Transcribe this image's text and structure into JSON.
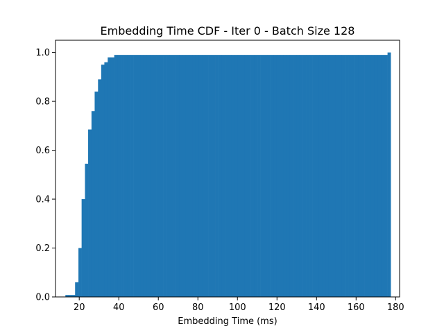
{
  "chart_data": {
    "type": "bar",
    "title": "Embedding Time CDF - Iter 0 - Batch Size 128",
    "xlabel": "Embedding Time (ms)",
    "ylabel": "",
    "xlim": [
      8,
      182
    ],
    "ylim": [
      0,
      1.05
    ],
    "xticks": [
      20,
      40,
      60,
      80,
      100,
      120,
      140,
      160,
      180
    ],
    "yticks": [
      0.0,
      0.2,
      0.4,
      0.6,
      0.8,
      1.0
    ],
    "ytick_labels": [
      "0.0",
      "0.2",
      "0.4",
      "0.6",
      "0.8",
      "1.0"
    ],
    "grid": false,
    "bar_color": "#1f77b4",
    "bin_edges": [
      13.0,
      14.6,
      16.3,
      17.9,
      19.6,
      21.2,
      22.9,
      24.5,
      26.2,
      27.8,
      29.5,
      31.1,
      32.7,
      34.4,
      36.0,
      37.7,
      39.3,
      41.0,
      42.6,
      44.3,
      45.9,
      47.5,
      49.2,
      50.8,
      52.5,
      54.1,
      55.8,
      57.4,
      59.1,
      60.7,
      62.4,
      64.0,
      65.6,
      67.3,
      68.9,
      70.6,
      72.2,
      73.9,
      75.5,
      77.2,
      78.8,
      80.4,
      82.1,
      83.7,
      85.4,
      87.0,
      88.7,
      90.3,
      92.0,
      93.6,
      95.3,
      96.9,
      98.5,
      100.2,
      101.8,
      103.5,
      105.1,
      106.8,
      108.4,
      110.1,
      111.7,
      113.3,
      115.0,
      116.6,
      118.3,
      119.9,
      121.6,
      123.2,
      124.9,
      126.5,
      128.2,
      129.8,
      131.4,
      133.1,
      134.7,
      136.4,
      138.0,
      139.7,
      141.3,
      143.0,
      144.6,
      146.2,
      147.9,
      149.5,
      151.2,
      152.8,
      154.5,
      156.1,
      157.8,
      159.4,
      161.1,
      162.7,
      164.3,
      166.0,
      167.6,
      169.3,
      170.9,
      172.6,
      174.2,
      175.9,
      177.5
    ],
    "values": [
      0.008,
      0.008,
      0.008,
      0.06,
      0.2,
      0.4,
      0.545,
      0.685,
      0.76,
      0.84,
      0.89,
      0.95,
      0.96,
      0.98,
      0.98,
      0.99,
      0.99,
      0.99,
      0.99,
      0.99,
      0.99,
      0.99,
      0.99,
      0.99,
      0.99,
      0.99,
      0.99,
      0.99,
      0.99,
      0.99,
      0.99,
      0.99,
      0.99,
      0.99,
      0.99,
      0.99,
      0.99,
      0.99,
      0.99,
      0.99,
      0.99,
      0.99,
      0.99,
      0.99,
      0.99,
      0.99,
      0.99,
      0.99,
      0.99,
      0.99,
      0.99,
      0.99,
      0.99,
      0.99,
      0.99,
      0.99,
      0.99,
      0.99,
      0.99,
      0.99,
      0.99,
      0.99,
      0.99,
      0.99,
      0.99,
      0.99,
      0.99,
      0.99,
      0.99,
      0.99,
      0.99,
      0.99,
      0.99,
      0.99,
      0.99,
      0.99,
      0.99,
      0.99,
      0.99,
      0.99,
      0.99,
      0.99,
      0.99,
      0.99,
      0.99,
      0.99,
      0.99,
      0.99,
      0.99,
      0.99,
      0.99,
      0.99,
      0.99,
      0.99,
      0.99,
      0.99,
      0.99,
      0.99,
      0.99,
      1.0
    ]
  }
}
